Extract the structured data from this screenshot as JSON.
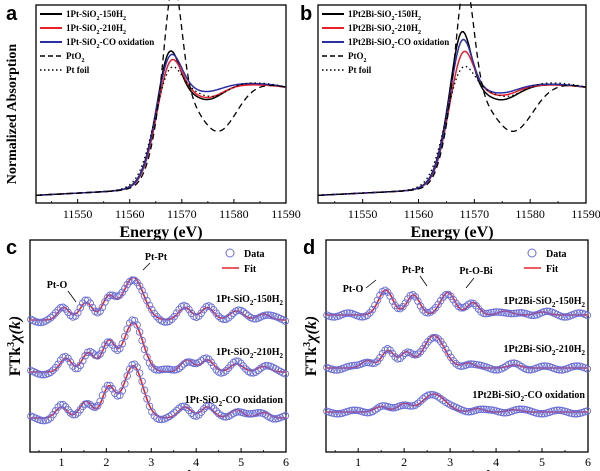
{
  "chart_data": [
    {
      "panel": "a",
      "type": "line",
      "xlabel": "Energy (eV)",
      "ylabel": "Normalized Absorption",
      "xlim": [
        11542,
        11590
      ],
      "xticks": [
        "11550",
        "11560",
        "11570",
        "11580",
        "11590"
      ],
      "legend_position": "top-left",
      "series": [
        {
          "name": "1Pt-SiO2-150H2",
          "label_main": "1Pt-SiO",
          "label_sub1": "2",
          "label_mid": "-150H",
          "label_sub2": "2",
          "color": "#000000",
          "style": "solid"
        },
        {
          "name": "1Pt-SiO2-210H2",
          "label_main": "1Pt-SiO",
          "label_sub1": "2",
          "label_mid": "-210H",
          "label_sub2": "2",
          "color": "#e8202a",
          "style": "solid"
        },
        {
          "name": "1Pt-SiO2-CO oxidation",
          "label_main": "1Pt-SiO",
          "label_sub1": "2",
          "label_mid": "-CO oxidation",
          "label_sub2": "",
          "color": "#2b2fa6",
          "style": "solid"
        },
        {
          "name": "PtO2",
          "label_main": "PtO",
          "label_sub1": "2",
          "label_mid": "",
          "label_sub2": "",
          "color": "#000000",
          "style": "dashed"
        },
        {
          "name": "Pt foil",
          "label_main": "Pt foil",
          "label_sub1": "",
          "label_mid": "",
          "label_sub2": "",
          "color": "#000000",
          "style": "dotted"
        }
      ]
    },
    {
      "panel": "b",
      "type": "line",
      "xlabel": "Energy (eV)",
      "xlim": [
        11542,
        11590
      ],
      "xticks": [
        "11550",
        "11560",
        "11570",
        "11580",
        "11590"
      ],
      "legend_position": "top-left",
      "series": [
        {
          "name": "1Pt2Bi-SiO2-150H2",
          "label_main": "1Pt2Bi-SiO",
          "label_sub1": "2",
          "label_mid": "-150H",
          "label_sub2": "2",
          "color": "#000000",
          "style": "solid"
        },
        {
          "name": "1Pt2Bi-SiO2-210H2",
          "label_main": "1Pt2Bi-SiO",
          "label_sub1": "2",
          "label_mid": "-210H",
          "label_sub2": "2",
          "color": "#e8202a",
          "style": "solid"
        },
        {
          "name": "1Pt2Bi-SiO2-CO oxidation",
          "label_main": "1Pt2Bi-SiO",
          "label_sub1": "2",
          "label_mid": "-CO oxidation",
          "label_sub2": "",
          "color": "#2b2fa6",
          "style": "solid"
        },
        {
          "name": "PtO2",
          "label_main": "PtO",
          "label_sub1": "2",
          "label_mid": "",
          "label_sub2": "",
          "color": "#000000",
          "style": "dashed"
        },
        {
          "name": "Pt foil",
          "label_main": "Pt foil",
          "label_sub1": "",
          "label_mid": "",
          "label_sub2": "",
          "color": "#000000",
          "style": "dotted"
        }
      ]
    },
    {
      "panel": "c",
      "type": "line",
      "xlabel": "Distance (Å)",
      "ylabel_main": "FTk",
      "ylabel_sup": "3",
      "ylabel_end": "χ(k)",
      "xlim": [
        0.3,
        6
      ],
      "xticks": [
        "1",
        "2",
        "3",
        "4",
        "5",
        "6"
      ],
      "legend": [
        {
          "name": "Data",
          "marker": "circle",
          "color": "#6a6fd6"
        },
        {
          "name": "Fit",
          "marker": "line",
          "color": "#e8202a"
        }
      ],
      "annotations": [
        {
          "text": "Pt-O",
          "x": 1.2
        },
        {
          "text": "Pt-Pt",
          "x": 2.7
        }
      ],
      "sample_labels": [
        {
          "main": "1Pt-SiO",
          "sub1": "2",
          "mid": "-150H",
          "sub2": "2"
        },
        {
          "main": "1Pt-SiO",
          "sub1": "2",
          "mid": "-210H",
          "sub2": "2"
        },
        {
          "main": "1Pt-SiO",
          "sub1": "2",
          "mid": "-CO oxidation",
          "sub2": ""
        }
      ],
      "peak_positions_A": [
        1.05,
        1.5,
        2.0,
        2.65,
        3.7,
        4.2,
        5.0
      ]
    },
    {
      "panel": "d",
      "type": "line",
      "xlabel": "Distance (Å)",
      "ylabel_main": "FTk",
      "ylabel_sup": "3",
      "ylabel_end": "χ(k)",
      "xlim": [
        0.3,
        6
      ],
      "xticks": [
        "1",
        "2",
        "3",
        "4",
        "5",
        "6"
      ],
      "legend": [
        {
          "name": "Data",
          "marker": "circle",
          "color": "#6a6fd6"
        },
        {
          "name": "Fit",
          "marker": "line",
          "color": "#e8202a"
        }
      ],
      "annotations": [
        {
          "text": "Pt-O",
          "x": 1.6
        },
        {
          "text": "Pt-Pt",
          "x": 2.2
        },
        {
          "text": "Pt-O-Bi",
          "x": 2.95
        }
      ],
      "sample_labels": [
        {
          "main": "1Pt2Bi-SiO",
          "sub1": "2",
          "mid": "-150H",
          "sub2": "2"
        },
        {
          "main": "1Pt2Bi-SiO",
          "sub1": "2",
          "mid": "-210H",
          "sub2": "2"
        },
        {
          "main": "1Pt2Bi-SiO",
          "sub1": "2",
          "mid": "-CO oxidation",
          "sub2": ""
        }
      ],
      "peak_positions_A": [
        1.6,
        2.2,
        2.95,
        3.5
      ]
    }
  ]
}
